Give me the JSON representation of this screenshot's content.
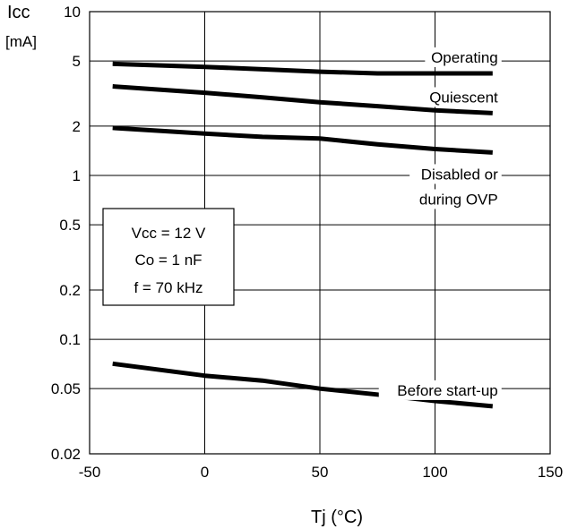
{
  "chart_data": {
    "type": "line",
    "title": "",
    "xlabel": "Tj  (°C)",
    "ylabel_line1": "Icc",
    "ylabel_line2": "[mA]",
    "xlim": [
      -50,
      150
    ],
    "ylim": [
      0.02,
      10
    ],
    "yscale": "log",
    "grid": true,
    "x_ticks": [
      -50,
      0,
      50,
      100,
      150
    ],
    "x_tick_labels": [
      "-50",
      "0",
      "50",
      "100",
      "150"
    ],
    "y_ticks": [
      10,
      5,
      2,
      1,
      0.5,
      0.2,
      0.1,
      0.05,
      0.02
    ],
    "y_tick_labels": [
      "10",
      "5",
      "2",
      "1",
      "0.5",
      "0.2",
      "0.1",
      "0.05",
      "0.02"
    ],
    "conditions": [
      "Vcc = 12 V",
      "Co = 1 nF",
      "f = 70 kHz"
    ],
    "series": [
      {
        "name": "Operating",
        "label_lines": [
          "Operating"
        ],
        "x": [
          -40,
          0,
          25,
          50,
          75,
          100,
          125
        ],
        "values": [
          4.8,
          4.6,
          4.45,
          4.3,
          4.2,
          4.2,
          4.2
        ]
      },
      {
        "name": "Quiescent",
        "label_lines": [
          "Quiescent"
        ],
        "x": [
          -40,
          0,
          25,
          50,
          75,
          100,
          125
        ],
        "values": [
          3.5,
          3.2,
          3.0,
          2.8,
          2.65,
          2.5,
          2.4
        ]
      },
      {
        "name": "Disabled or during OVP",
        "label_lines": [
          "Disabled or",
          "during OVP"
        ],
        "x": [
          -40,
          0,
          25,
          50,
          75,
          100,
          125
        ],
        "values": [
          1.95,
          1.8,
          1.72,
          1.68,
          1.55,
          1.45,
          1.38
        ]
      },
      {
        "name": "Before start-up",
        "label_lines": [
          "Before start-up"
        ],
        "x": [
          -40,
          0,
          25,
          50,
          75,
          100,
          125
        ],
        "values": [
          0.071,
          0.06,
          0.056,
          0.05,
          0.046,
          0.042,
          0.039
        ]
      }
    ]
  }
}
